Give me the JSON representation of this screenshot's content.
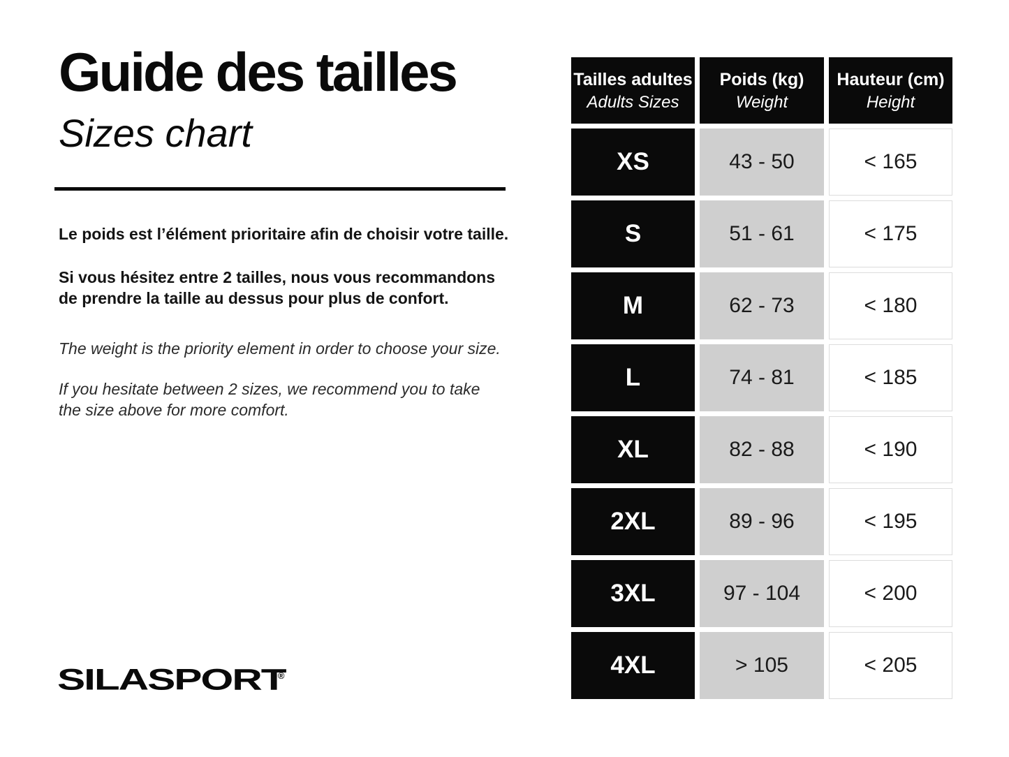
{
  "page": {
    "title_fr": "Guide des tailles",
    "title_en": "Sizes chart",
    "paragraph_fr_1": "Le poids est l’élément prioritaire afin de choisir votre taille.",
    "paragraph_fr_2": "Si vous hésitez entre 2 tailles, nous vous recommandons\nde prendre la taille au dessus pour plus de confort.",
    "paragraph_en_1": "The weight is the priority element in order to choose your size.",
    "paragraph_en_2": "If you hesitate between 2 sizes, we recommend you to take\nthe size above for more comfort.",
    "logo_text": "SILASPORT",
    "logo_reg_mark": "®"
  },
  "colors": {
    "black": "#0a0a0a",
    "gray_cell": "#cfcfcf",
    "white_cell_border": "#dcdcdc"
  },
  "chart_data": {
    "type": "table",
    "columns": [
      {
        "label_fr": "Tailles adultes",
        "label_en": "Adults Sizes"
      },
      {
        "label_fr": "Poids (kg)",
        "label_en": "Weight"
      },
      {
        "label_fr": "Hauteur (cm)",
        "label_en": "Height"
      }
    ],
    "rows": [
      {
        "size": "XS",
        "weight_kg": "43 - 50",
        "height_cm": "< 165"
      },
      {
        "size": "S",
        "weight_kg": "51 - 61",
        "height_cm": "< 175"
      },
      {
        "size": "M",
        "weight_kg": "62 - 73",
        "height_cm": "< 180"
      },
      {
        "size": "L",
        "weight_kg": "74 - 81",
        "height_cm": "< 185"
      },
      {
        "size": "XL",
        "weight_kg": "82 - 88",
        "height_cm": "< 190"
      },
      {
        "size": "2XL",
        "weight_kg": "89 - 96",
        "height_cm": "< 195"
      },
      {
        "size": "3XL",
        "weight_kg": "97 - 104",
        "height_cm": "< 200"
      },
      {
        "size": "4XL",
        "weight_kg": "> 105",
        "height_cm": "< 205"
      }
    ]
  }
}
